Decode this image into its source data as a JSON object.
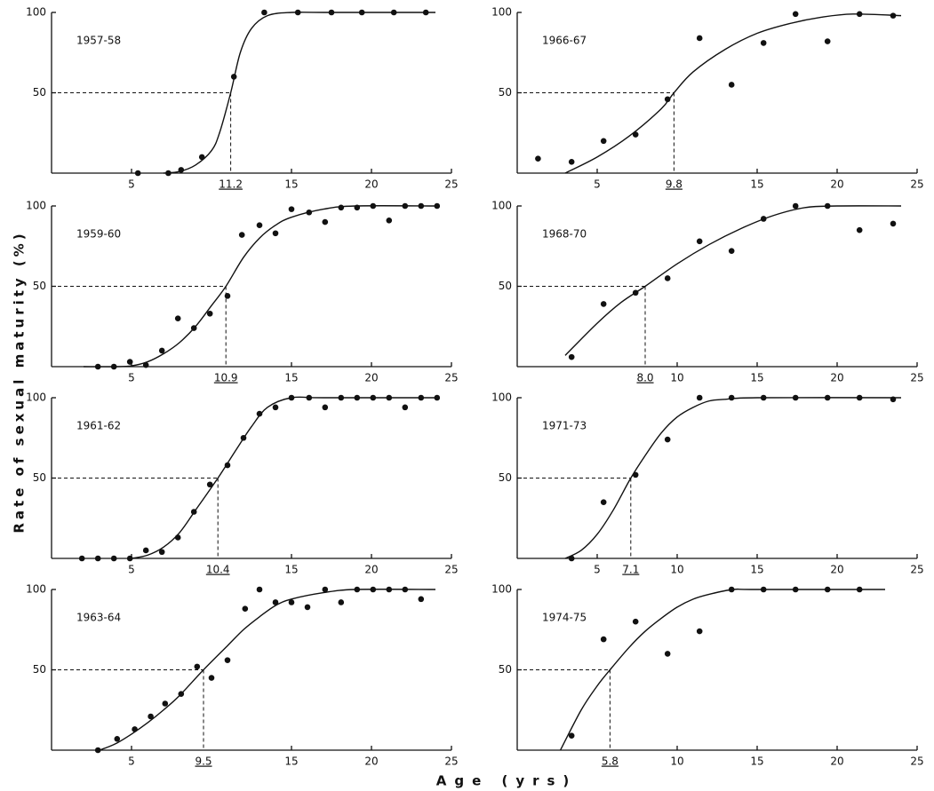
{
  "ylabel": "Rate of sexual maturity (%)",
  "xlabel": "Age (yrs)",
  "chart_data": [
    {
      "type": "scatter",
      "title": "1957-58",
      "xlim": [
        0,
        25
      ],
      "ylim": [
        0,
        100
      ],
      "xticks": [
        5,
        15,
        20,
        25
      ],
      "yticks": [
        50,
        100
      ],
      "maturity_age": 11.2,
      "x": [
        5.4,
        7.3,
        8.1,
        9.4,
        11.4,
        13.3,
        15.4,
        17.5,
        19.4,
        21.4,
        23.4
      ],
      "y": [
        0,
        0,
        2,
        10,
        60,
        100,
        100,
        100,
        100,
        100,
        100
      ],
      "curve": {
        "x": [
          7,
          8,
          9,
          10,
          10.5,
          11.2,
          11.8,
          12.5,
          13.5,
          15,
          17,
          24
        ],
        "y": [
          0,
          1,
          5,
          14,
          25,
          50,
          75,
          90,
          98,
          100,
          100,
          100
        ]
      }
    },
    {
      "type": "scatter",
      "title": "1966-67",
      "xlim": [
        0,
        25
      ],
      "ylim": [
        0,
        100
      ],
      "xticks": [
        5,
        15,
        20,
        25
      ],
      "yticks": [
        50,
        100
      ],
      "maturity_age": 9.8,
      "x": [
        1.3,
        3.4,
        5.4,
        7.4,
        9.4,
        11.4,
        13.4,
        15.4,
        17.4,
        19.4,
        21.4,
        23.5
      ],
      "y": [
        9,
        7,
        20,
        24,
        46,
        84,
        55,
        81,
        99,
        82,
        99,
        98
      ],
      "curve": {
        "x": [
          3,
          5,
          7,
          9,
          9.8,
          11,
          13,
          15,
          17,
          19,
          21,
          24
        ],
        "y": [
          0,
          10,
          23,
          40,
          50,
          63,
          77,
          87,
          93,
          97,
          99,
          98
        ]
      }
    },
    {
      "type": "scatter",
      "title": "1959-60",
      "xlim": [
        0,
        25
      ],
      "ylim": [
        0,
        100
      ],
      "xticks": [
        5,
        15,
        20,
        25
      ],
      "yticks": [
        50,
        100
      ],
      "maturity_age": 10.9,
      "x": [
        2.9,
        3.9,
        4.9,
        5.9,
        6.9,
        7.9,
        8.9,
        9.9,
        11,
        11.9,
        13,
        14,
        15,
        16.1,
        17.1,
        18.1,
        19.1,
        20.1,
        21.1,
        22.1,
        23.1,
        24.1
      ],
      "y": [
        0,
        0,
        3,
        1,
        10,
        30,
        24,
        33,
        44,
        82,
        88,
        83,
        98,
        96,
        90,
        99,
        99,
        100,
        91,
        100,
        100,
        100
      ],
      "curve": {
        "x": [
          2,
          4,
          5,
          6,
          7,
          8,
          9,
          10,
          10.9,
          12,
          13,
          14,
          15,
          17,
          19,
          24
        ],
        "y": [
          0,
          0,
          0.5,
          3,
          8,
          15,
          25,
          38,
          50,
          68,
          80,
          88,
          93,
          98,
          100,
          100
        ]
      }
    },
    {
      "type": "scatter",
      "title": "1968-70",
      "xlim": [
        0,
        25
      ],
      "ylim": [
        0,
        100
      ],
      "xticks": [
        10,
        15,
        20,
        25
      ],
      "yticks": [
        50,
        100
      ],
      "maturity_age": {
        "value": 8,
        "label": "8.0"
      },
      "x": [
        3.4,
        5.4,
        7.4,
        9.4,
        11.4,
        13.4,
        15.4,
        17.4,
        19.4,
        21.4,
        23.5
      ],
      "y": [
        6,
        39,
        46,
        55,
        78,
        72,
        92,
        100,
        100,
        85,
        89
      ],
      "curve": {
        "x": [
          3,
          5,
          6.5,
          8,
          10,
          12,
          14,
          16,
          18,
          20,
          24
        ],
        "y": [
          7,
          27,
          40,
          50,
          64,
          76,
          86,
          94,
          99,
          100,
          100
        ]
      }
    },
    {
      "type": "scatter",
      "title": "1961-62",
      "xlim": [
        0,
        25
      ],
      "ylim": [
        0,
        100
      ],
      "xticks": [
        5,
        15,
        20,
        25
      ],
      "yticks": [
        50,
        100
      ],
      "maturity_age": 10.4,
      "x": [
        1.9,
        2.9,
        3.9,
        4.9,
        5.9,
        6.9,
        7.9,
        8.9,
        9.9,
        11,
        12,
        13,
        14,
        15,
        16.1,
        17.1,
        18.1,
        19.1,
        20.1,
        21.1,
        22.1,
        23.1,
        24.1
      ],
      "y": [
        0,
        0,
        0,
        0,
        5,
        4,
        13,
        29,
        46,
        58,
        75,
        90,
        94,
        100,
        100,
        94,
        100,
        100,
        100,
        100,
        94,
        100,
        100
      ],
      "curve": {
        "x": [
          5,
          6,
          7,
          8,
          9,
          10.4,
          11.5,
          12.5,
          13.5,
          15,
          17,
          24
        ],
        "y": [
          0,
          2,
          7,
          16,
          30,
          50,
          67,
          82,
          94,
          100,
          100,
          100
        ]
      }
    },
    {
      "type": "scatter",
      "title": "1971-73",
      "xlim": [
        0,
        25
      ],
      "ylim": [
        0,
        100
      ],
      "xticks": [
        5,
        10,
        15,
        20,
        25
      ],
      "yticks": [
        50,
        100
      ],
      "maturity_age": 7.1,
      "x": [
        3.4,
        5.4,
        7.4,
        9.4,
        11.4,
        13.4,
        15.4,
        17.4,
        19.4,
        21.4,
        23.5
      ],
      "y": [
        0,
        35,
        52,
        74,
        100,
        100,
        100,
        100,
        100,
        100,
        99
      ],
      "curve": {
        "x": [
          3,
          4,
          5,
          6,
          7.1,
          8,
          9,
          10,
          11,
          12,
          13,
          15,
          24
        ],
        "y": [
          0,
          5,
          15,
          30,
          50,
          64,
          78,
          88,
          94,
          98,
          99,
          100,
          100
        ]
      }
    },
    {
      "type": "scatter",
      "title": "1963-64",
      "xlim": [
        0,
        25
      ],
      "ylim": [
        0,
        100
      ],
      "xticks": [
        5,
        15,
        20,
        25
      ],
      "yticks": [
        50,
        100
      ],
      "maturity_age": 9.5,
      "x": [
        2.9,
        4.1,
        5.2,
        6.2,
        7.1,
        8.1,
        9.1,
        10,
        11,
        12.1,
        13,
        14,
        15,
        16,
        17.1,
        18.1,
        19.1,
        20.1,
        21.1,
        22.1,
        23.1
      ],
      "y": [
        0,
        7,
        13,
        21,
        29,
        35,
        52,
        45,
        56,
        88,
        100,
        92,
        92,
        89,
        100,
        92,
        100,
        100,
        100,
        100,
        94
      ],
      "curve": {
        "x": [
          3,
          4,
          5,
          6,
          7,
          8,
          9.5,
          11,
          12,
          13,
          14,
          15,
          17,
          19,
          24
        ],
        "y": [
          0,
          4,
          10,
          17,
          25,
          34,
          50,
          65,
          75,
          83,
          90,
          94,
          98,
          100,
          100
        ]
      }
    },
    {
      "type": "scatter",
      "title": "1974-75",
      "xlim": [
        0,
        25
      ],
      "ylim": [
        0,
        100
      ],
      "xticks": [
        10,
        15,
        20,
        25
      ],
      "yticks": [
        50,
        100
      ],
      "maturity_age": 5.8,
      "x": [
        3.4,
        5.4,
        7.4,
        9.4,
        11.4,
        13.4,
        15.4,
        17.4,
        19.4,
        21.4
      ],
      "y": [
        9,
        69,
        80,
        60,
        74,
        100,
        100,
        100,
        100,
        100
      ],
      "curve": {
        "x": [
          2.7,
          4,
          5,
          5.8,
          7,
          8,
          9,
          10,
          11,
          12,
          13.5,
          15,
          23
        ],
        "y": [
          0,
          25,
          40,
          50,
          64,
          74,
          82,
          89,
          94,
          97,
          100,
          100,
          100
        ]
      }
    }
  ]
}
